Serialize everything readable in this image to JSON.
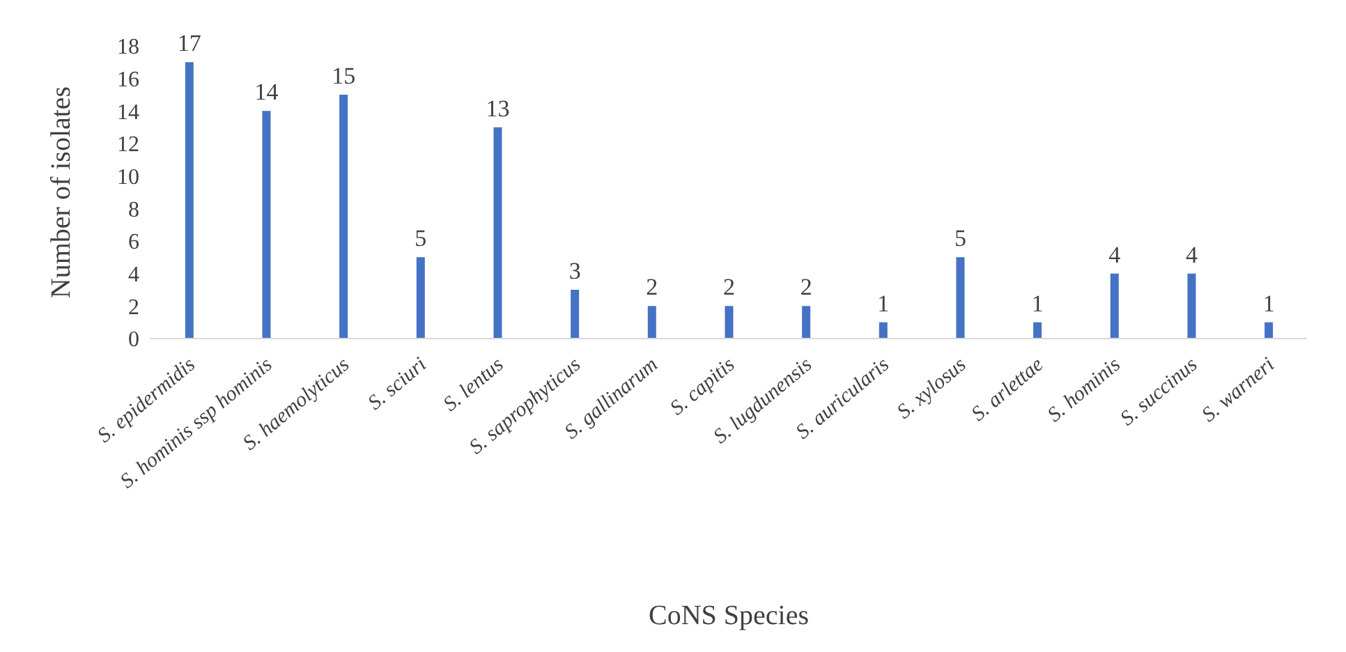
{
  "chart_data": {
    "type": "bar",
    "xlabel": "CoNS Species",
    "ylabel": "Number of isolates",
    "categories": [
      "S. epidermidis",
      "S. hominis ssp hominis",
      "S. haemolyticus",
      "S. sciuri",
      "S. lentus",
      "S. saprophyticus",
      "S. gallinarum",
      "S. capitis",
      "S. lugdunensis",
      "S. auricularis",
      "S. xylosus",
      "S. arlettae",
      "S. hominis",
      "S. succinus",
      "S. warneri"
    ],
    "values": [
      17,
      14,
      15,
      5,
      13,
      3,
      2,
      2,
      2,
      1,
      5,
      1,
      4,
      4,
      1
    ],
    "color": "#4472c4",
    "ylim": [
      0,
      18
    ],
    "yticks": [
      0,
      2,
      4,
      6,
      8,
      10,
      12,
      14,
      16,
      18
    ],
    "data_labels": true
  }
}
